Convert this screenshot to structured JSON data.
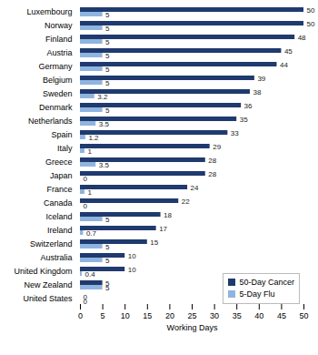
{
  "chart_data": {
    "type": "bar",
    "orientation": "horizontal",
    "xlabel": "Working Days",
    "categories": [
      "Luxembourg",
      "Norway",
      "Finland",
      "Austria",
      "Germany",
      "Belgium",
      "Sweden",
      "Denmark",
      "Netherlands",
      "Spain",
      "Italy",
      "Greece",
      "Japan",
      "France",
      "Canada",
      "Iceland",
      "Ireland",
      "Switzerland",
      "Australia",
      "United Kingdom",
      "New Zealand",
      "United States"
    ],
    "series": [
      {
        "name": "50-Day Cancer",
        "color": "#1f3a6e",
        "values": [
          50,
          50,
          48,
          45,
          44,
          39,
          38,
          36,
          35,
          33,
          29,
          28,
          28,
          24,
          22,
          18,
          17,
          15,
          10,
          10,
          5,
          0
        ]
      },
      {
        "name": "5-Day Flu",
        "color": "#8fb4e0",
        "values": [
          5,
          5,
          5,
          5,
          5,
          5,
          3.2,
          5,
          3.5,
          1.2,
          1,
          3.5,
          0,
          1,
          0,
          5,
          0.7,
          5,
          5,
          0.4,
          5,
          0
        ]
      }
    ],
    "xlim": [
      0,
      50
    ],
    "xticks": [
      0,
      5,
      10,
      15,
      20,
      25,
      30,
      35,
      40,
      45,
      50
    ],
    "data_labels": true,
    "legend": "lower right"
  }
}
